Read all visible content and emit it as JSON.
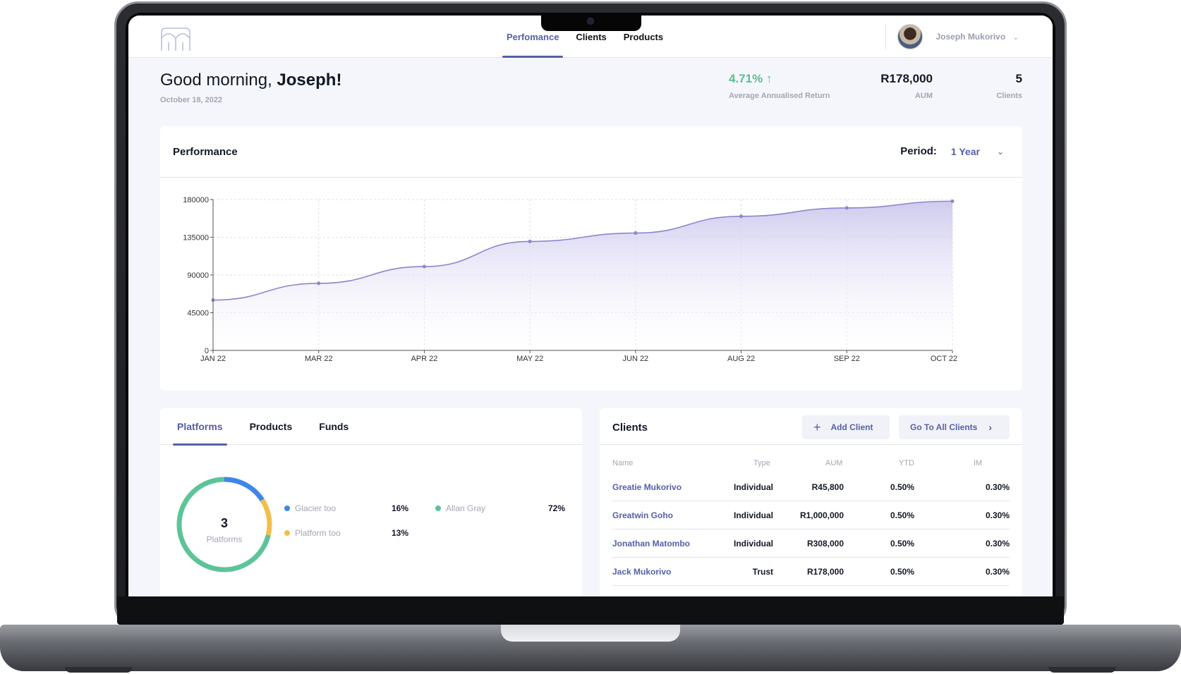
{
  "nav": {
    "tabs": [
      "Perfomance",
      "Clients",
      "Products"
    ],
    "active_tab": 0,
    "user_name": "Joseph Mukorivo"
  },
  "greeting": {
    "prefix": "Good morning, ",
    "name": "Joseph!",
    "date": "October 18, 2022"
  },
  "kpis": {
    "return_value": "4.71%",
    "return_arrow": "↑",
    "return_label": "Average Annualised Return",
    "aum_value": "R178,000",
    "aum_label": "AUM",
    "clients_value": "5",
    "clients_label": "Clients"
  },
  "performance": {
    "title": "Performance",
    "period_label": "Period:",
    "period_value": "1 Year"
  },
  "chart_data": {
    "type": "area",
    "x": [
      "JAN 22",
      "MAR 22",
      "APR 22",
      "MAY 22",
      "JUN 22",
      "AUG 22",
      "SEP 22",
      "OCT 22"
    ],
    "values": [
      60000,
      80000,
      100000,
      130000,
      140000,
      160000,
      170000,
      178000
    ],
    "yticks": [
      0,
      45000,
      90000,
      135000,
      180000
    ],
    "ylim": [
      0,
      180000
    ],
    "grid": true,
    "color": "#8b86cc"
  },
  "platforms": {
    "tabs": [
      "Platforms",
      "Products",
      "Funds"
    ],
    "active_tab": 0,
    "count": "3",
    "count_label": "Platforms",
    "segments": [
      {
        "name": "Glacier too",
        "pct": "16%",
        "value": 16,
        "color": "#3f86ea"
      },
      {
        "name": "Platform too",
        "pct": "13%",
        "value": 13,
        "color": "#f2be4a"
      },
      {
        "name": "Allan Gray",
        "pct": "72%",
        "value": 72,
        "color": "#5cc498"
      }
    ]
  },
  "clients": {
    "title": "Clients",
    "add_label": "Add Client",
    "go_label": "Go To All Clients",
    "columns": [
      "Name",
      "Type",
      "AUM",
      "YTD",
      "IM"
    ],
    "rows": [
      {
        "name": "Greatie Mukorivo",
        "type": "Individual",
        "aum": "R45,800",
        "ytd": "0.50%",
        "im": "0.30%"
      },
      {
        "name": "Greatwin Goho",
        "type": "Individual",
        "aum": "R1,000,000",
        "ytd": "0.50%",
        "im": "0.30%"
      },
      {
        "name": "Jonathan Matombo",
        "type": "Individual",
        "aum": "R308,000",
        "ytd": "0.50%",
        "im": "0.30%"
      },
      {
        "name": "Jack Mukorivo",
        "type": "Trust",
        "aum": "R178,000",
        "ytd": "0.50%",
        "im": "0.30%"
      }
    ]
  }
}
